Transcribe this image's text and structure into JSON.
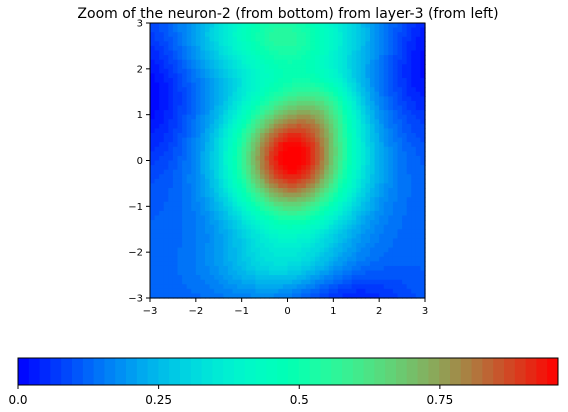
{
  "chart_data": {
    "type": "heatmap",
    "title": "Zoom of the neuron-2 (from bottom) from layer-3 (from left)",
    "xlabel": "",
    "ylabel": "",
    "xlim": [
      -3,
      3
    ],
    "ylim": [
      -3,
      3
    ],
    "x_ticks": [
      -3,
      -2,
      -1,
      0,
      1,
      2,
      3
    ],
    "y_ticks": [
      -3,
      -2,
      -1,
      0,
      1,
      2,
      3
    ],
    "x_tick_labels": [
      "−3",
      "−2",
      "−1",
      "0",
      "1",
      "2",
      "3"
    ],
    "y_tick_labels": [
      "−3",
      "−2",
      "−1",
      "0",
      "1",
      "2",
      "3"
    ],
    "colormap": "rainbow",
    "value_range": [
      0,
      0.96
    ],
    "grid": false,
    "colorbar": {
      "orientation": "horizontal",
      "placement": "bottom",
      "ticks": [
        0,
        0.25,
        0.5,
        0.75
      ],
      "tick_labels": [
        "0.0",
        "0.25",
        "0.5",
        "0.75"
      ],
      "levels": 50
    },
    "surface": {
      "description_values": "estimated activation over the (x, y) grid",
      "peak": {
        "x": 0.1,
        "y": 0.1,
        "value": 0.96
      },
      "lows": [
        {
          "x": -3.0,
          "y": 1.5,
          "value": 0.03
        },
        {
          "x": 3.0,
          "y": 2.2,
          "value": 0.03
        },
        {
          "x": 1.2,
          "y": -3.0,
          "value": 0.05
        }
      ]
    }
  }
}
